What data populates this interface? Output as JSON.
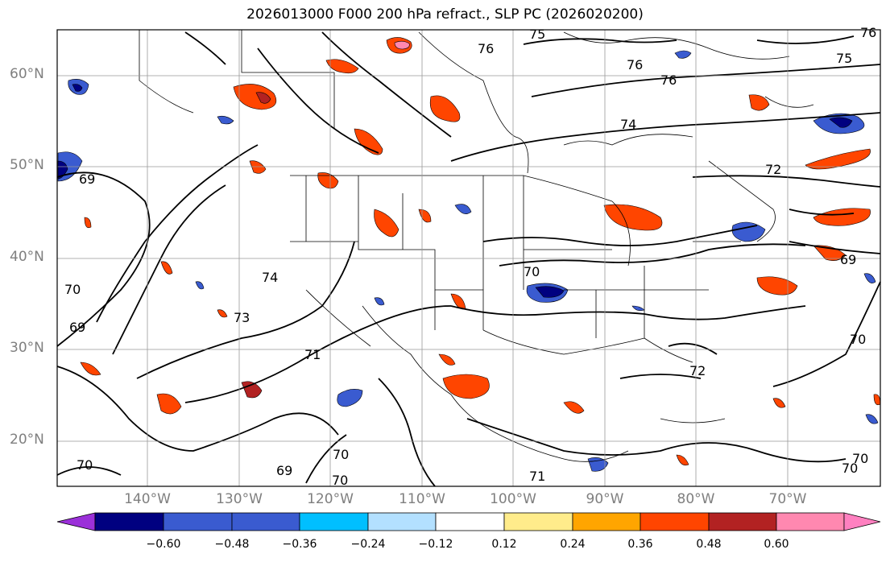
{
  "title": "2026013000 F000 200 hPa refract., SLP PC (2026020200)",
  "lat_labels": [
    "60°N",
    "50°N",
    "40°N",
    "30°N",
    "20°N"
  ],
  "lon_labels": [
    "140°W",
    "130°W",
    "120°W",
    "110°W",
    "100°W",
    "90°W",
    "80°W",
    "70°W"
  ],
  "contour_labels": [
    "75",
    "76",
    "76",
    "75",
    "76",
    "76",
    "74",
    "72",
    "69",
    "69",
    "74",
    "73",
    "70",
    "71",
    "70",
    "72",
    "70",
    "69",
    "69",
    "70",
    "70",
    "71",
    "70",
    "70",
    "70"
  ],
  "colorbar": {
    "tick_labels": [
      "−0.60",
      "−0.48",
      "−0.36",
      "−0.24",
      "−0.12",
      "0.12",
      "0.24",
      "0.36",
      "0.48",
      "0.60"
    ],
    "colors": [
      "#9b30d9",
      "#000080",
      "#3a5bd0",
      "#00bfff",
      "#b3e0ff",
      "#ffffff",
      "#ffec8b",
      "#ffa500",
      "#ff4500",
      "#b22222",
      "#ff88b0",
      "#ff80c0"
    ]
  }
}
